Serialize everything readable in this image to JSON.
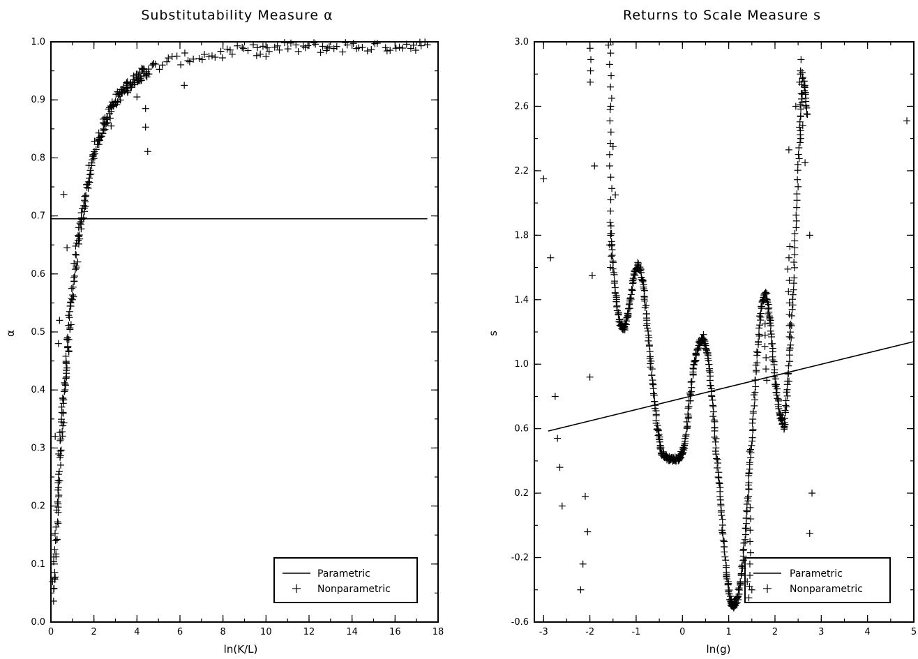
{
  "chart_data": [
    {
      "type": "scatter",
      "title": "Substitutability Measure α",
      "xlabel": "ln(K/L)",
      "ylabel": "α",
      "xlim": [
        0,
        18
      ],
      "ylim": [
        0.0,
        1.0
      ],
      "xticks": [
        0,
        2,
        4,
        6,
        8,
        10,
        12,
        14,
        16,
        18
      ],
      "xtick_labels": [
        "0",
        "2",
        "4",
        "6",
        "8",
        "10",
        "12",
        "14",
        "16",
        "18"
      ],
      "yticks": [
        0.0,
        0.1,
        0.2,
        0.3,
        0.4,
        0.5,
        0.6,
        0.7,
        0.8,
        0.9,
        1.0
      ],
      "ytick_labels": [
        "0.0",
        "0.1",
        "0.2",
        "0.3",
        "0.4",
        "0.5",
        "0.6",
        "0.7",
        "0.8",
        "0.9",
        "1.0"
      ],
      "legend": {
        "position": "bottom-right",
        "entries": [
          {
            "label": "Parametric",
            "symbol": "line"
          },
          {
            "label": "Nonparametric",
            "symbol": "plus"
          }
        ]
      },
      "series": [
        {
          "name": "Parametric",
          "kind": "line",
          "x": [
            0,
            17.5
          ],
          "y": [
            0.695,
            0.695
          ]
        },
        {
          "name": "Nonparametric",
          "kind": "plus",
          "curve": "logistic",
          "params": {
            "x0": 1.0,
            "k": 1.5,
            "xmin": 0.0,
            "xmax": 17.5,
            "n": 700,
            "noise": 0.02
          },
          "x": [
            0.1,
            0.3,
            0.5,
            0.7,
            0.9,
            1.2,
            1.6,
            2.0,
            2.5,
            3.0,
            3.5,
            4.0,
            4.5,
            5.0,
            6.0,
            7.0,
            8.0,
            9.0,
            10.0,
            11.0,
            12.0,
            13.0,
            14.0,
            15.0,
            16.0,
            17.0,
            17.5
          ],
          "y": [
            0.04,
            0.2,
            0.33,
            0.43,
            0.53,
            0.64,
            0.73,
            0.81,
            0.86,
            0.9,
            0.92,
            0.94,
            0.95,
            0.96,
            0.97,
            0.975,
            0.98,
            0.985,
            0.987,
            0.99,
            0.99,
            0.991,
            0.992,
            0.992,
            0.993,
            0.995,
            0.995
          ],
          "outliers": {
            "x": [
              0.6,
              0.75,
              1.4,
              4.4,
              4.4,
              4.5,
              2.8,
              6.2,
              10.0,
              12.8,
              9.6,
              4.0,
              0.4,
              0.35,
              0.2
            ],
            "y": [
              0.737,
              0.645,
              0.69,
              0.885,
              0.853,
              0.811,
              0.855,
              0.925,
              0.975,
              0.985,
              0.99,
              0.905,
              0.52,
              0.48,
              0.32
            ]
          }
        }
      ]
    },
    {
      "type": "scatter",
      "title": "Returns to Scale Measure s",
      "xlabel": "ln(g)",
      "ylabel": "s",
      "xlim": [
        -3.2,
        5.0
      ],
      "ylim": [
        -0.6,
        3.0
      ],
      "xticks": [
        -3,
        -2,
        -1,
        0,
        1,
        2,
        3,
        4,
        5
      ],
      "xtick_labels": [
        "-3",
        "-2",
        "-1",
        "0",
        "1",
        "2",
        "3",
        "4",
        "5"
      ],
      "yticks": [
        -0.6,
        -0.2,
        0.2,
        0.6,
        1.0,
        1.4,
        1.8,
        2.2,
        2.6,
        3.0
      ],
      "ytick_labels": [
        "-0.6",
        "-0.2",
        "0.2",
        "0.6",
        "1.0",
        "1.4",
        "1.8",
        "2.2",
        "2.6",
        "3.0"
      ],
      "legend": {
        "position": "bottom-right",
        "entries": [
          {
            "label": "Parametric",
            "symbol": "line"
          },
          {
            "label": "Nonparametric",
            "symbol": "plus"
          }
        ]
      },
      "series": [
        {
          "name": "Parametric",
          "kind": "line",
          "x": [
            -2.9,
            5.0
          ],
          "y": [
            0.585,
            1.14
          ]
        },
        {
          "name": "Nonparametric",
          "kind": "plus",
          "x": [
            -1.55,
            -1.45,
            -1.35,
            -1.25,
            -1.15,
            -1.05,
            -0.95,
            -0.85,
            -0.75,
            -0.65,
            -0.55,
            -0.45,
            -0.35,
            -0.25,
            -0.15,
            -0.05,
            0.05,
            0.15,
            0.25,
            0.35,
            0.45,
            0.55,
            0.65,
            0.75,
            0.85,
            0.95,
            1.05,
            1.1,
            1.2,
            1.3,
            1.4,
            1.5,
            1.6,
            1.7,
            1.8,
            1.9,
            2.0,
            2.1,
            2.2,
            2.3,
            2.4,
            2.5,
            2.6,
            2.7
          ],
          "y": [
            1.85,
            1.45,
            1.25,
            1.22,
            1.35,
            1.55,
            1.62,
            1.5,
            1.22,
            0.9,
            0.62,
            0.45,
            0.42,
            0.41,
            0.41,
            0.42,
            0.5,
            0.75,
            1.0,
            1.12,
            1.17,
            1.05,
            0.75,
            0.4,
            0.05,
            -0.3,
            -0.48,
            -0.5,
            -0.45,
            -0.25,
            0.1,
            0.55,
            1.0,
            1.35,
            1.45,
            1.25,
            0.9,
            0.7,
            0.6,
            0.95,
            1.5,
            2.2,
            2.8,
            2.55
          ],
          "outliers": {
            "x": [
              -3.0,
              -2.85,
              -2.75,
              -2.7,
              -2.65,
              -2.6,
              -2.2,
              -2.15,
              -2.1,
              -2.05,
              -2.0,
              -1.95,
              -1.9,
              -1.6,
              -1.55,
              -1.5,
              -1.45,
              2.3,
              2.45,
              2.55,
              2.6,
              2.65,
              2.75,
              2.8,
              2.75,
              4.85,
              1.5,
              1.4
            ],
            "y": [
              2.15,
              1.66,
              0.8,
              0.54,
              0.36,
              0.12,
              -0.4,
              -0.24,
              0.18,
              -0.04,
              0.92,
              1.55,
              2.23,
              2.98,
              2.6,
              2.35,
              2.05,
              2.33,
              2.6,
              2.8,
              2.48,
              2.25,
              1.8,
              0.2,
              -0.05,
              2.51,
              -0.4,
              -0.35
            ]
          }
        }
      ]
    }
  ]
}
